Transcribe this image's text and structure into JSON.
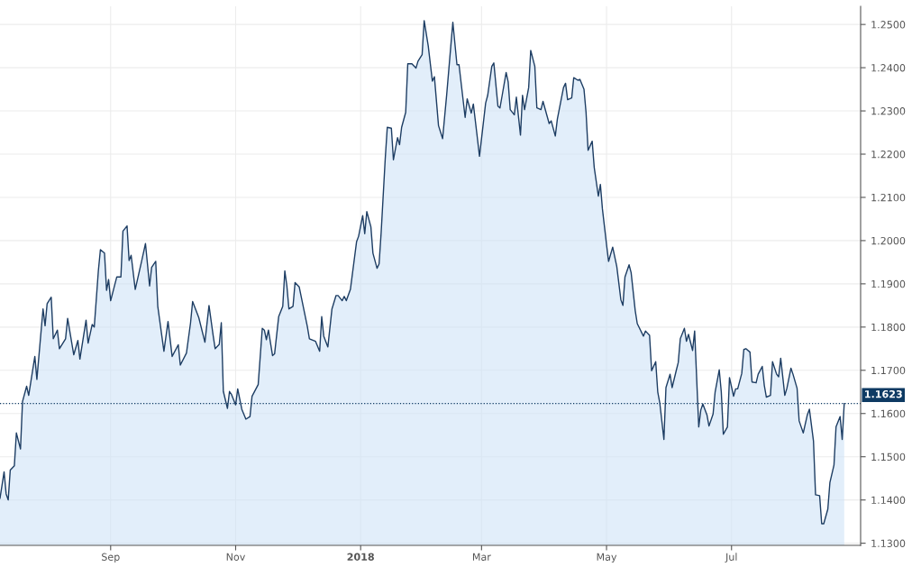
{
  "chart_data": {
    "type": "area",
    "x": [
      "2017-07-09",
      "2017-07-11",
      "2017-07-12",
      "2017-07-13",
      "2017-07-14",
      "2017-07-16",
      "2017-07-17",
      "2017-07-19",
      "2017-07-20",
      "2017-07-22",
      "2017-07-23",
      "2017-07-26",
      "2017-07-27",
      "2017-07-30",
      "2017-07-31",
      "2017-08-01",
      "2017-08-03",
      "2017-08-04",
      "2017-08-06",
      "2017-08-07",
      "2017-08-10",
      "2017-08-11",
      "2017-08-14",
      "2017-08-16",
      "2017-08-17",
      "2017-08-20",
      "2017-08-21",
      "2017-08-23",
      "2017-08-24",
      "2017-08-26",
      "2017-08-27",
      "2017-08-29",
      "2017-08-30",
      "2017-08-31",
      "2017-09-01",
      "2017-09-04",
      "2017-09-06",
      "2017-09-07",
      "2017-09-09",
      "2017-09-10",
      "2017-09-11",
      "2017-09-13",
      "2017-09-16",
      "2017-09-18",
      "2017-09-20",
      "2017-09-21",
      "2017-09-23",
      "2017-09-24",
      "2017-09-27",
      "2017-09-29",
      "2017-10-01",
      "2017-10-04",
      "2017-10-05",
      "2017-10-08",
      "2017-10-10",
      "2017-10-11",
      "2017-10-14",
      "2017-10-17",
      "2017-10-19",
      "2017-10-21",
      "2017-10-22",
      "2017-10-24",
      "2017-10-25",
      "2017-10-26",
      "2017-10-28",
      "2017-10-29",
      "2017-10-30",
      "2017-11-01",
      "2017-11-02",
      "2017-11-04",
      "2017-11-06",
      "2017-11-08",
      "2017-11-09",
      "2017-11-12",
      "2017-11-14",
      "2017-11-15",
      "2017-11-16",
      "2017-11-17",
      "2017-11-19",
      "2017-11-20",
      "2017-11-22",
      "2017-11-24",
      "2017-11-25",
      "2017-11-26",
      "2017-11-27",
      "2017-11-29",
      "2017-11-30",
      "2017-12-02",
      "2017-12-06",
      "2017-12-07",
      "2017-12-10",
      "2017-12-12",
      "2017-12-13",
      "2017-12-14",
      "2017-12-16",
      "2017-12-18",
      "2017-12-20",
      "2017-12-21",
      "2017-12-23",
      "2017-12-24",
      "2017-12-25",
      "2017-12-27",
      "2017-12-30",
      "2017-12-31",
      "2018-01-02",
      "2018-01-03",
      "2018-01-04",
      "2018-01-06",
      "2018-01-07",
      "2018-01-09",
      "2018-01-10",
      "2018-01-11",
      "2018-01-13",
      "2018-01-14",
      "2018-01-16",
      "2018-01-17",
      "2018-01-19",
      "2018-01-20",
      "2018-01-21",
      "2018-01-23",
      "2018-01-24",
      "2018-01-26",
      "2018-01-28",
      "2018-01-29",
      "2018-01-31",
      "2018-02-01",
      "2018-02-03",
      "2018-02-05",
      "2018-02-06",
      "2018-02-08",
      "2018-02-10",
      "2018-02-12",
      "2018-02-14",
      "2018-02-15",
      "2018-02-17",
      "2018-02-18",
      "2018-02-21",
      "2018-02-22",
      "2018-02-24",
      "2018-02-25",
      "2018-02-27",
      "2018-02-28",
      "2018-03-03",
      "2018-03-04",
      "2018-03-06",
      "2018-03-07",
      "2018-03-09",
      "2018-03-10",
      "2018-03-11",
      "2018-03-13",
      "2018-03-14",
      "2018-03-15",
      "2018-03-17",
      "2018-03-18",
      "2018-03-20",
      "2018-03-21",
      "2018-03-22",
      "2018-03-24",
      "2018-03-25",
      "2018-03-27",
      "2018-03-28",
      "2018-03-30",
      "2018-03-31",
      "2018-04-03",
      "2018-04-04",
      "2018-04-06",
      "2018-04-07",
      "2018-04-10",
      "2018-04-11",
      "2018-04-12",
      "2018-04-14",
      "2018-04-15",
      "2018-04-17",
      "2018-04-18",
      "2018-04-20",
      "2018-04-21",
      "2018-04-22",
      "2018-04-24",
      "2018-04-25",
      "2018-04-27",
      "2018-04-28",
      "2018-04-29",
      "2018-05-01",
      "2018-05-02",
      "2018-05-04",
      "2018-05-06",
      "2018-05-08",
      "2018-05-09",
      "2018-05-10",
      "2018-05-12",
      "2018-05-13",
      "2018-05-15",
      "2018-05-16",
      "2018-05-19",
      "2018-05-20",
      "2018-05-22",
      "2018-05-23",
      "2018-05-25",
      "2018-05-26",
      "2018-05-27",
      "2018-05-29",
      "2018-05-30",
      "2018-06-01",
      "2018-06-02",
      "2018-06-04",
      "2018-06-05",
      "2018-06-06",
      "2018-06-08",
      "2018-06-09",
      "2018-06-10",
      "2018-06-12",
      "2018-06-13",
      "2018-06-15",
      "2018-06-16",
      "2018-06-17",
      "2018-06-19",
      "2018-06-20",
      "2018-06-22",
      "2018-06-23",
      "2018-06-25",
      "2018-06-26",
      "2018-06-27",
      "2018-06-29",
      "2018-06-30",
      "2018-07-02",
      "2018-07-03",
      "2018-07-04",
      "2018-07-06",
      "2018-07-07",
      "2018-07-08",
      "2018-07-10",
      "2018-07-11",
      "2018-07-13",
      "2018-07-14",
      "2018-07-16",
      "2018-07-17",
      "2018-07-18",
      "2018-07-20",
      "2018-07-21",
      "2018-07-23",
      "2018-07-24",
      "2018-07-25",
      "2018-07-27",
      "2018-07-28",
      "2018-07-30",
      "2018-07-31",
      "2018-08-02",
      "2018-08-03",
      "2018-08-04",
      "2018-08-05",
      "2018-08-07",
      "2018-08-08",
      "2018-08-10",
      "2018-08-11",
      "2018-08-13",
      "2018-08-14",
      "2018-08-15",
      "2018-08-17",
      "2018-08-18",
      "2018-08-20",
      "2018-08-21",
      "2018-08-23",
      "2018-08-24",
      "2018-08-25"
    ],
    "series": [
      {
        "color": "#1d3d63",
        "values": [
          1.1404,
          1.1465,
          1.1414,
          1.14,
          1.1469,
          1.1479,
          1.1555,
          1.1518,
          1.1628,
          1.1663,
          1.1642,
          1.1732,
          1.1679,
          1.1842,
          1.1803,
          1.1854,
          1.1869,
          1.1773,
          1.1793,
          1.175,
          1.1773,
          1.182,
          1.1736,
          1.1769,
          1.1726,
          1.1816,
          1.1763,
          1.1806,
          1.18,
          1.193,
          1.1979,
          1.1971,
          1.1885,
          1.191,
          1.1861,
          1.1916,
          1.1916,
          1.2022,
          1.2034,
          1.1954,
          1.1966,
          1.1887,
          1.195,
          1.1993,
          1.1895,
          1.1938,
          1.1952,
          1.1848,
          1.1744,
          1.1813,
          1.1732,
          1.1759,
          1.1712,
          1.174,
          1.181,
          1.1859,
          1.1822,
          1.1765,
          1.185,
          1.1781,
          1.175,
          1.176,
          1.181,
          1.1651,
          1.1612,
          1.1651,
          1.1644,
          1.162,
          1.1657,
          1.161,
          1.1587,
          1.1593,
          1.164,
          1.1667,
          1.1797,
          1.1793,
          1.1771,
          1.1793,
          1.1734,
          1.1738,
          1.1824,
          1.1848,
          1.193,
          1.1895,
          1.1842,
          1.1848,
          1.1903,
          1.1893,
          1.1801,
          1.1773,
          1.1767,
          1.1744,
          1.1824,
          1.1779,
          1.1754,
          1.1842,
          1.1873,
          1.1873,
          1.1861,
          1.1871,
          1.1861,
          1.1887,
          1.1997,
          1.201,
          1.2058,
          1.2016,
          1.2067,
          1.2032,
          1.1971,
          1.1936,
          1.1946,
          1.2018,
          1.2189,
          1.2262,
          1.226,
          1.2187,
          1.2238,
          1.2222,
          1.2262,
          1.2297,
          1.2409,
          1.2409,
          1.2399,
          1.2415,
          1.243,
          1.2509,
          1.245,
          1.2369,
          1.2379,
          1.2266,
          1.2236,
          1.2338,
          1.245,
          1.2505,
          1.2407,
          1.2407,
          1.2285,
          1.2328,
          1.2295,
          1.2316,
          1.2236,
          1.2195,
          1.2318,
          1.2336,
          1.2403,
          1.2411,
          1.2311,
          1.2307,
          1.2334,
          1.2389,
          1.2367,
          1.2303,
          1.2291,
          1.2332,
          1.2244,
          1.2336,
          1.2303,
          1.2354,
          1.244,
          1.2403,
          1.2307,
          1.2303,
          1.2322,
          1.2271,
          1.2277,
          1.2242,
          1.2281,
          1.2354,
          1.2364,
          1.2326,
          1.233,
          1.2377,
          1.2371,
          1.2373,
          1.235,
          1.2297,
          1.2209,
          1.223,
          1.2169,
          1.2103,
          1.213,
          1.2073,
          1.1991,
          1.1952,
          1.1985,
          1.194,
          1.1863,
          1.185,
          1.1916,
          1.1944,
          1.1926,
          1.1838,
          1.1808,
          1.1779,
          1.1791,
          1.1781,
          1.1699,
          1.172,
          1.165,
          1.1624,
          1.154,
          1.166,
          1.1691,
          1.166,
          1.1699,
          1.1718,
          1.1773,
          1.1797,
          1.1767,
          1.1783,
          1.1746,
          1.1791,
          1.1569,
          1.1608,
          1.1622,
          1.1597,
          1.1571,
          1.1599,
          1.165,
          1.1701,
          1.165,
          1.1552,
          1.1569,
          1.1683,
          1.164,
          1.1657,
          1.1657,
          1.1693,
          1.1748,
          1.175,
          1.1742,
          1.1673,
          1.1671,
          1.1691,
          1.1709,
          1.1665,
          1.1638,
          1.1642,
          1.172,
          1.1691,
          1.1685,
          1.1728,
          1.1642,
          1.1658,
          1.1705,
          1.1691,
          1.1658,
          1.1583,
          1.1569,
          1.1555,
          1.1597,
          1.161,
          1.1536,
          1.1412,
          1.141,
          1.1345,
          1.1345,
          1.1379,
          1.144,
          1.1481,
          1.1569,
          1.1593,
          1.154,
          1.1623
        ]
      }
    ],
    "xlim": [
      "2017-07-09",
      "2018-09-02"
    ],
    "xticks": [
      {
        "value": "2017-09-01",
        "label": "Sep"
      },
      {
        "value": "2017-11-01",
        "label": "Nov"
      },
      {
        "value": "2018-01-01",
        "label": "2018"
      },
      {
        "value": "2018-03-01",
        "label": "Mar"
      },
      {
        "value": "2018-05-01",
        "label": "May"
      },
      {
        "value": "2018-07-01",
        "label": "Jul"
      }
    ],
    "ylim": [
      1.1295,
      1.2542
    ],
    "yticks": [
      {
        "value": 1.13,
        "label": "1.1300"
      },
      {
        "value": 1.14,
        "label": "1.1400"
      },
      {
        "value": 1.15,
        "label": "1.1500"
      },
      {
        "value": 1.16,
        "label": "1.1600"
      },
      {
        "value": 1.17,
        "label": "1.1700"
      },
      {
        "value": 1.18,
        "label": "1.1800"
      },
      {
        "value": 1.19,
        "label": "1.1900"
      },
      {
        "value": 1.2,
        "label": "1.2000"
      },
      {
        "value": 1.21,
        "label": "1.2100"
      },
      {
        "value": 1.22,
        "label": "1.2200"
      },
      {
        "value": 1.23,
        "label": "1.2300"
      },
      {
        "value": 1.24,
        "label": "1.2400"
      },
      {
        "value": 1.25,
        "label": "1.2500"
      }
    ],
    "ref_lines": [
      {
        "axis": "y",
        "value": 1.1623,
        "label": "1.1623",
        "color": "#0e3a63",
        "line_style": "dotted"
      }
    ],
    "grid": true,
    "line_style": "solid",
    "marker": "none"
  }
}
